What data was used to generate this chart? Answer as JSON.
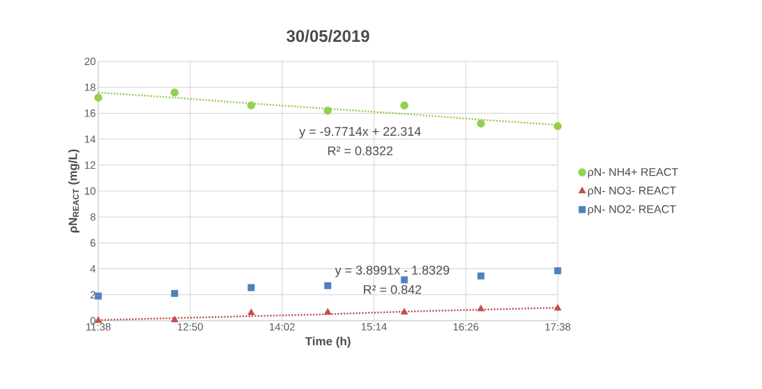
{
  "chart_data": {
    "type": "scatter",
    "title": "30/05/2019",
    "xlabel": "Time (h)",
    "ylabel": "ρN$_{REACT}$ (mg/L)",
    "xlim": [
      11.6333,
      17.6333
    ],
    "xticks": [
      {
        "value": 11.6333,
        "label": "11:38"
      },
      {
        "value": 12.8333,
        "label": "12:50"
      },
      {
        "value": 14.0333,
        "label": "14:02"
      },
      {
        "value": 15.2333,
        "label": "15:14"
      },
      {
        "value": 16.4333,
        "label": "16:26"
      },
      {
        "value": 17.6333,
        "label": "17:38"
      }
    ],
    "ylim": [
      0,
      20
    ],
    "yticks": [
      0,
      2,
      4,
      6,
      8,
      10,
      12,
      14,
      16,
      18,
      20
    ],
    "grid": true,
    "legend": "right",
    "x": [
      11.6333,
      12.63,
      13.63,
      14.63,
      15.63,
      16.63,
      17.6333
    ],
    "series": [
      {
        "name": "ρN- NH4+ REACT",
        "color": "#92d050",
        "marker": "circle",
        "values": [
          17.2,
          17.6,
          16.6,
          16.2,
          16.6,
          15.2,
          15.0
        ]
      },
      {
        "name": "ρN- NO3- REACT",
        "color": "#c0504d",
        "marker": "triangle",
        "values": [
          0.0,
          0.05,
          0.6,
          0.65,
          0.65,
          0.9,
          0.95
        ]
      },
      {
        "name": "ρN- NO2- REACT",
        "color": "#4f81bd",
        "marker": "square",
        "values": [
          1.9,
          2.1,
          2.55,
          2.7,
          3.15,
          3.45,
          3.85
        ]
      },
      {
        "type": "line",
        "color": "#92d050",
        "line_style": "dotted",
        "marker": "none",
        "values": [
          17.6,
          17.2,
          16.75,
          16.35,
          15.95,
          15.5,
          15.1
        ]
      },
      {
        "type": "line",
        "color": "#c0504d",
        "line_style": "dotted",
        "marker": "none",
        "values": [
          0.05,
          0.2,
          0.35,
          0.5,
          0.7,
          0.85,
          1.0
        ]
      }
    ],
    "annotations": [
      "y = -9.7714x + 22.314",
      "R² = 0.8322",
      "y = 3.8991x - 1.8329",
      "R² = 0.842"
    ]
  }
}
